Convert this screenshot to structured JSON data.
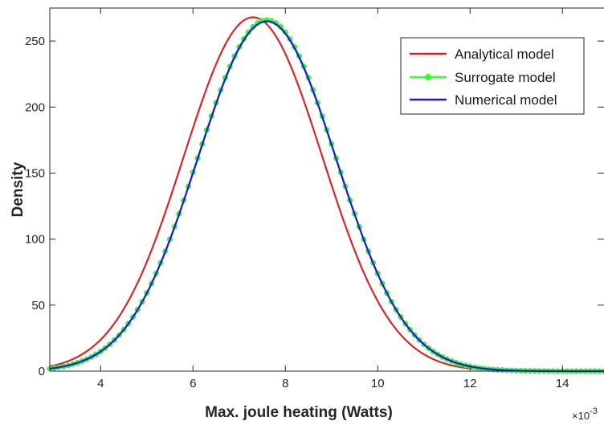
{
  "chart_data": {
    "type": "line",
    "title": "",
    "xlabel": "Max. joule heating (Watts)",
    "ylabel": "Density",
    "x_multiplier_base": "×10",
    "x_multiplier_exp": "-3",
    "xlim": [
      2.9,
      14.9
    ],
    "ylim": [
      0,
      275
    ],
    "x_ticks": [
      4,
      6,
      8,
      10,
      12,
      14
    ],
    "y_ticks": [
      0,
      50,
      100,
      150,
      200,
      250
    ],
    "grid": false,
    "legend_position": "top-right",
    "series": [
      {
        "name": "Analytical model",
        "color": "#d62728",
        "marker": "none",
        "distribution": {
          "shape": "gaussian",
          "mean": 7.3,
          "std": 1.5,
          "peak_density": 268
        }
      },
      {
        "name": "Surrogate model",
        "color": "#33ff33",
        "marker": "circle",
        "distribution": {
          "shape": "gaussian",
          "mean": 7.6,
          "std": 1.5,
          "peak_density": 266
        }
      },
      {
        "name": "Numerical model",
        "color": "#1a1ad9",
        "marker": "none",
        "distribution": {
          "shape": "gaussian",
          "mean": 7.6,
          "std": 1.5,
          "peak_density": 265
        }
      }
    ]
  }
}
